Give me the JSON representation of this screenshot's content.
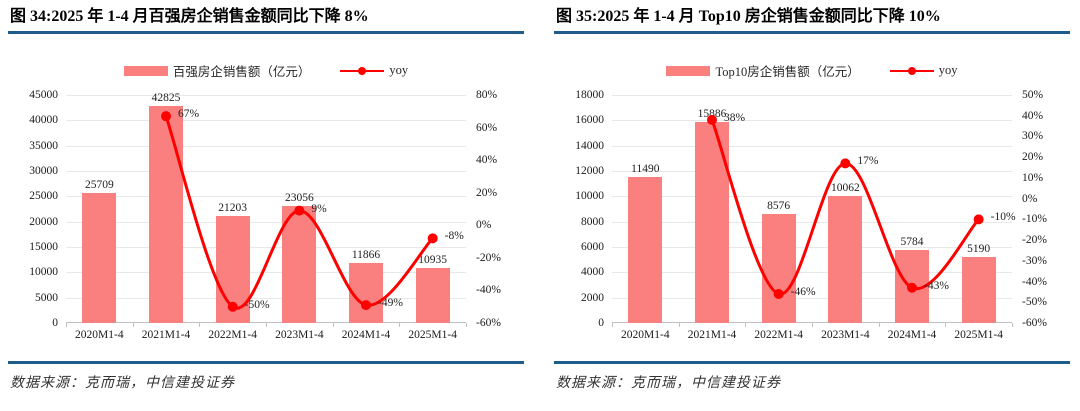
{
  "colors": {
    "bar": "#FA8080",
    "line": "#FE0000",
    "rule_blue": "#1E5C8C",
    "gridline": "#E8E8E8",
    "axis_line": "#C0C0C0"
  },
  "chart_data": [
    {
      "type": "bar+line",
      "title": "图 34:2025 年 1-4 月百强房企销售金额同比下降 8%",
      "source": "数据来源：克而瑞，中信建投证券",
      "categories": [
        "2020M1-4",
        "2021M1-4",
        "2022M1-4",
        "2023M1-4",
        "2024M1-4",
        "2025M1-4"
      ],
      "bar_series": {
        "name": "百强房企销售额（亿元）",
        "axis": "left",
        "values": [
          25709,
          42825,
          21203,
          23056,
          11866,
          10935
        ]
      },
      "line_series": {
        "name": "yoy",
        "axis": "right",
        "values_pct": [
          null,
          67,
          -50,
          9,
          -49,
          -8
        ],
        "labels": [
          null,
          "67%",
          "-50%",
          "9%",
          "-49%",
          "-8%"
        ]
      },
      "y_left": {
        "min": 0,
        "max": 45000,
        "ticks": [
          "45000",
          "40000",
          "35000",
          "30000",
          "25000",
          "20000",
          "15000",
          "10000",
          "5000",
          "0"
        ]
      },
      "y_right": {
        "min": -60,
        "max": 80,
        "ticks": [
          "80%",
          "60%",
          "40%",
          "20%",
          "0%",
          "-20%",
          "-40%",
          "-60%"
        ]
      },
      "grid": "horizontal",
      "legend_position": "top-center"
    },
    {
      "type": "bar+line",
      "title": "图 35:2025 年 1-4 月 Top10 房企销售金额同比下降 10%",
      "source": "数据来源：克而瑞，中信建投证券",
      "categories": [
        "2020M1-4",
        "2021M1-4",
        "2022M1-4",
        "2023M1-4",
        "2024M1-4",
        "2025M1-4"
      ],
      "bar_series": {
        "name": "Top10房企销售额（亿元）",
        "axis": "left",
        "values": [
          11490,
          15886,
          8576,
          10062,
          5784,
          5190
        ]
      },
      "line_series": {
        "name": "yoy",
        "axis": "right",
        "values_pct": [
          null,
          38,
          -46,
          17,
          -43,
          -10
        ],
        "labels": [
          null,
          "38%",
          "-46%",
          "17%",
          "-43%",
          "-10%"
        ]
      },
      "y_left": {
        "min": 0,
        "max": 18000,
        "ticks": [
          "18000",
          "16000",
          "14000",
          "12000",
          "10000",
          "8000",
          "6000",
          "4000",
          "2000",
          "0"
        ]
      },
      "y_right": {
        "min": -60,
        "max": 50,
        "ticks": [
          "50%",
          "40%",
          "30%",
          "20%",
          "10%",
          "0%",
          "-10%",
          "-20%",
          "-30%",
          "-40%",
          "-50%",
          "-60%"
        ]
      },
      "grid": "horizontal",
      "legend_position": "top-center"
    }
  ]
}
